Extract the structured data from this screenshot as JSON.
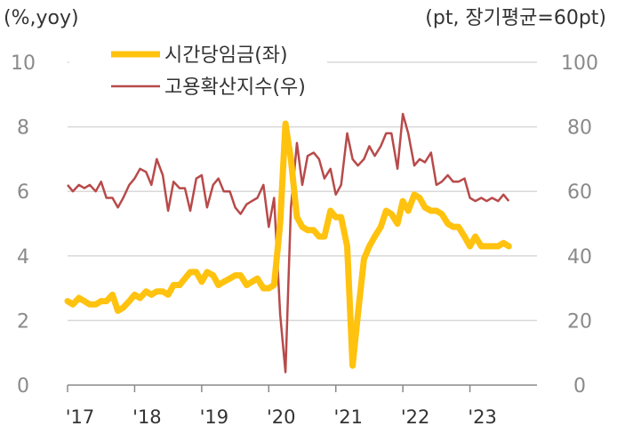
{
  "chart_data": {
    "type": "line",
    "left_axis_label": "(%,yoy)",
    "right_axis_label": "(pt, 장기평균=60pt)",
    "y_left": {
      "min": 0,
      "max": 10,
      "ticks": [
        0,
        2,
        4,
        6,
        8,
        10
      ]
    },
    "y_right": {
      "min": 0,
      "max": 100,
      "ticks": [
        0,
        20,
        40,
        60,
        80,
        100
      ]
    },
    "x_range": [
      2017.0,
      2024.0
    ],
    "x_ticks": [
      {
        "value": 2017,
        "label": "'17"
      },
      {
        "value": 2018,
        "label": "'18"
      },
      {
        "value": 2019,
        "label": "'19"
      },
      {
        "value": 2020,
        "label": "'20"
      },
      {
        "value": 2021,
        "label": "'21"
      },
      {
        "value": 2022,
        "label": "'22"
      },
      {
        "value": 2023,
        "label": "'23"
      }
    ],
    "grid": "horizontal",
    "legend_position": "top-left",
    "colors": {
      "wage": "#FFC20E",
      "diffusion": "#B84A4A",
      "grid": "#d9d9d9",
      "axis": "#8a8a8a"
    },
    "series": [
      {
        "name": "시간당임금(좌)",
        "axis": "left",
        "x": [
          2017.0,
          2017.08,
          2017.17,
          2017.25,
          2017.33,
          2017.42,
          2017.5,
          2017.58,
          2017.67,
          2017.75,
          2017.83,
          2017.92,
          2018.0,
          2018.08,
          2018.17,
          2018.25,
          2018.33,
          2018.42,
          2018.5,
          2018.58,
          2018.67,
          2018.75,
          2018.83,
          2018.92,
          2019.0,
          2019.08,
          2019.17,
          2019.25,
          2019.33,
          2019.42,
          2019.5,
          2019.58,
          2019.67,
          2019.75,
          2019.83,
          2019.92,
          2020.0,
          2020.08,
          2020.17,
          2020.25,
          2020.33,
          2020.42,
          2020.5,
          2020.58,
          2020.67,
          2020.75,
          2020.83,
          2020.92,
          2021.0,
          2021.08,
          2021.17,
          2021.25,
          2021.33,
          2021.42,
          2021.5,
          2021.58,
          2021.67,
          2021.75,
          2021.83,
          2021.92,
          2022.0,
          2022.08,
          2022.17,
          2022.25,
          2022.33,
          2022.42,
          2022.5,
          2022.58,
          2022.67,
          2022.75,
          2022.83,
          2022.92,
          2023.0,
          2023.08,
          2023.17,
          2023.25,
          2023.33,
          2023.42,
          2023.5,
          2023.58
        ],
        "values": [
          2.6,
          2.5,
          2.7,
          2.6,
          2.5,
          2.5,
          2.6,
          2.6,
          2.8,
          2.3,
          2.4,
          2.6,
          2.8,
          2.7,
          2.9,
          2.8,
          2.9,
          2.9,
          2.8,
          3.1,
          3.1,
          3.3,
          3.5,
          3.5,
          3.2,
          3.5,
          3.4,
          3.1,
          3.2,
          3.3,
          3.4,
          3.4,
          3.1,
          3.2,
          3.3,
          3.0,
          3.0,
          3.1,
          5.0,
          8.1,
          7.0,
          5.2,
          4.9,
          4.8,
          4.8,
          4.6,
          4.6,
          5.4,
          5.2,
          5.2,
          4.3,
          0.6,
          2.2,
          3.9,
          4.3,
          4.6,
          4.9,
          5.4,
          5.3,
          5.0,
          5.7,
          5.4,
          5.9,
          5.8,
          5.5,
          5.4,
          5.4,
          5.3,
          5.0,
          4.9,
          4.9,
          4.6,
          4.3,
          4.6,
          4.3,
          4.3,
          4.3,
          4.3,
          4.4,
          4.3
        ]
      },
      {
        "name": "고용확산지수(우)",
        "axis": "right",
        "x": [
          2017.0,
          2017.08,
          2017.17,
          2017.25,
          2017.33,
          2017.42,
          2017.5,
          2017.58,
          2017.67,
          2017.75,
          2017.83,
          2017.92,
          2018.0,
          2018.08,
          2018.17,
          2018.25,
          2018.33,
          2018.42,
          2018.5,
          2018.58,
          2018.67,
          2018.75,
          2018.83,
          2018.92,
          2019.0,
          2019.08,
          2019.17,
          2019.25,
          2019.33,
          2019.42,
          2019.5,
          2019.58,
          2019.67,
          2019.75,
          2019.83,
          2019.92,
          2020.0,
          2020.08,
          2020.17,
          2020.25,
          2020.33,
          2020.42,
          2020.5,
          2020.58,
          2020.67,
          2020.75,
          2020.83,
          2020.92,
          2021.0,
          2021.08,
          2021.17,
          2021.25,
          2021.33,
          2021.42,
          2021.5,
          2021.58,
          2021.67,
          2021.75,
          2021.83,
          2021.92,
          2022.0,
          2022.08,
          2022.17,
          2022.25,
          2022.33,
          2022.42,
          2022.5,
          2022.58,
          2022.67,
          2022.75,
          2022.83,
          2022.92,
          2023.0,
          2023.08,
          2023.17,
          2023.25,
          2023.33,
          2023.42,
          2023.5,
          2023.58
        ],
        "values": [
          62,
          60,
          62,
          61,
          62,
          60,
          63,
          58,
          58,
          55,
          58,
          62,
          64,
          67,
          66,
          62,
          70,
          65,
          54,
          63,
          61,
          61,
          54,
          64,
          65,
          55,
          62,
          64,
          60,
          60,
          55,
          53,
          56,
          57,
          58,
          62,
          49,
          58,
          22,
          4,
          55,
          75,
          62,
          71,
          72,
          70,
          64,
          67,
          59,
          62,
          78,
          70,
          68,
          70,
          74,
          71,
          74,
          78,
          78,
          67,
          84,
          78,
          68,
          70,
          69,
          72,
          62,
          63,
          65,
          63,
          63,
          64,
          58,
          57,
          58,
          57,
          58,
          57,
          59,
          57
        ]
      }
    ]
  }
}
